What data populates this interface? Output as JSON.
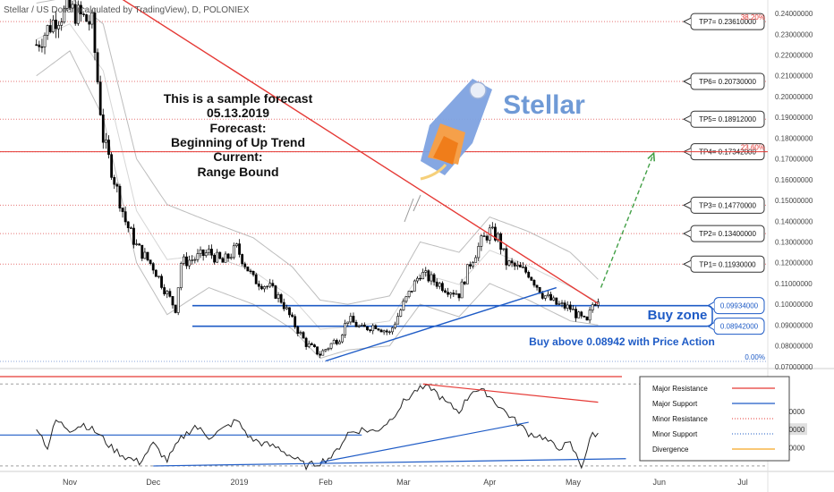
{
  "header": {
    "title": "Stellar / US Dollar (calculated by TradingView), D, POLONIEX"
  },
  "annotation": {
    "lines": [
      "This is a sample forecast",
      "05.13.2019",
      "Forecast:",
      "Beginning of Up Trend",
      "Current:",
      "Range Bound"
    ]
  },
  "logo": {
    "text": "Stellar",
    "icon": "rocket-icon",
    "color": "#6f9ad6"
  },
  "buy_zone": {
    "label": "Buy zone",
    "note": "Buy above 0.08942 with Price Action",
    "upper": 0.09934,
    "lower": 0.08942,
    "upper_label": "0.09934000",
    "lower_label": "0.08942000"
  },
  "targets": [
    {
      "label": "TP1= 0.11930000",
      "value": 0.1193
    },
    {
      "label": "TP2= 0.13400000",
      "value": 0.134
    },
    {
      "label": "TP3= 0.14770000",
      "value": 0.1477
    },
    {
      "label": "TP4= 0.17342000",
      "value": 0.17342
    },
    {
      "label": "TP5= 0.18912000",
      "value": 0.18912
    },
    {
      "label": "TP6= 0.20730000",
      "value": 0.2073
    },
    {
      "label": "TP7= 0.23610000",
      "value": 0.2361
    }
  ],
  "fib_levels": [
    {
      "label": "38.20%",
      "value": 0.2361
    },
    {
      "label": "23.60%",
      "value": 0.17342
    },
    {
      "label": "0.00%",
      "value": 0.0725
    }
  ],
  "legend": {
    "items": [
      {
        "label": "Major Resistance",
        "color": "#e53935",
        "style": "solid"
      },
      {
        "label": "Major Support",
        "color": "#1e5bc6",
        "style": "solid"
      },
      {
        "label": "Minor Resistance",
        "color": "#e53935",
        "style": "dotted"
      },
      {
        "label": "Minor Support",
        "color": "#1e5bc6",
        "style": "dotted"
      },
      {
        "label": "Divergence",
        "color": "#f5a623",
        "style": "solid"
      }
    ]
  },
  "colors": {
    "support": "#1e5bc6",
    "resistance": "#e53935",
    "projection": "#43a047",
    "candle": "#000000",
    "band": "#bdbdbd"
  },
  "chart_data": {
    "type": "candlestick",
    "ylim": [
      0.0699,
      0.2465
    ],
    "price_ticks": [
      "0.24000000",
      "0.23000000",
      "0.22000000",
      "0.21000000",
      "0.20000000",
      "0.19000000",
      "0.18000000",
      "0.17000000",
      "0.16000000",
      "0.15000000",
      "0.14000000",
      "0.13000000",
      "0.12000000",
      "0.11000000",
      "0.10000000",
      "0.09000000",
      "0.08000000",
      "0.07000000"
    ],
    "price_tick_values": [
      0.24,
      0.23,
      0.22,
      0.21,
      0.2,
      0.19,
      0.18,
      0.17,
      0.16,
      0.15,
      0.14,
      0.13,
      0.12,
      0.11,
      0.1,
      0.09,
      0.08,
      0.07
    ],
    "x_labels": [
      "Nov",
      "Dec",
      "2019",
      "Feb",
      "Mar",
      "Apr",
      "May",
      "Jun",
      "Jul"
    ],
    "x_label_days": [
      0,
      30,
      61,
      92,
      120,
      151,
      181,
      212,
      242
    ],
    "close_series": {
      "days": [
        -12,
        -5,
        0,
        8,
        12,
        15,
        20,
        24,
        30,
        35,
        38,
        40,
        45,
        50,
        55,
        60,
        66,
        72,
        76,
        80,
        85,
        90,
        95,
        97,
        100,
        105,
        110,
        115,
        120,
        126,
        130,
        135,
        140,
        144,
        148,
        151,
        154,
        157,
        160,
        165,
        170,
        175,
        180,
        183,
        186,
        188,
        190
      ],
      "values": [
        0.225,
        0.238,
        0.242,
        0.235,
        0.18,
        0.165,
        0.14,
        0.128,
        0.118,
        0.105,
        0.098,
        0.12,
        0.122,
        0.125,
        0.12,
        0.127,
        0.112,
        0.108,
        0.102,
        0.092,
        0.081,
        0.076,
        0.082,
        0.084,
        0.093,
        0.088,
        0.09,
        0.086,
        0.1,
        0.115,
        0.112,
        0.108,
        0.105,
        0.12,
        0.13,
        0.135,
        0.132,
        0.12,
        0.118,
        0.115,
        0.105,
        0.1,
        0.098,
        0.094,
        0.091,
        0.1,
        0.103
      ]
    },
    "volatility_bands": {
      "upper": {
        "days": [
          -12,
          0,
          12,
          24,
          35,
          50,
          66,
          80,
          90,
          100,
          115,
          126,
          140,
          151,
          165,
          180,
          190
        ],
        "values": [
          0.245,
          0.248,
          0.235,
          0.17,
          0.148,
          0.14,
          0.132,
          0.118,
          0.102,
          0.1,
          0.104,
          0.13,
          0.125,
          0.142,
          0.135,
          0.125,
          0.112
        ]
      },
      "lower": {
        "days": [
          -12,
          0,
          12,
          24,
          35,
          50,
          66,
          80,
          90,
          100,
          115,
          126,
          140,
          151,
          165,
          180,
          190
        ],
        "values": [
          0.21,
          0.222,
          0.19,
          0.12,
          0.095,
          0.108,
          0.1,
          0.088,
          0.074,
          0.078,
          0.08,
          0.1,
          0.094,
          0.11,
          0.102,
          0.092,
          0.09
        ]
      }
    },
    "trendlines": {
      "resistance": {
        "from": [
          -28,
          0.287
        ],
        "to": [
          190,
          0.1003
        ]
      },
      "support": {
        "from": [
          92,
          0.0727
        ],
        "to": [
          175,
          0.108
        ]
      },
      "projection": {
        "from": [
          191,
          0.108
        ],
        "to": [
          210,
          0.1727
        ]
      }
    },
    "oscillator": {
      "ticks": [
        "60.00000",
        "50.00000",
        "40.00000"
      ],
      "tick_values": [
        60,
        50,
        40
      ],
      "ylim": [
        28,
        82
      ],
      "current_value": "50.00000",
      "days": [
        -12,
        -8,
        -5,
        0,
        5,
        10,
        15,
        20,
        25,
        30,
        35,
        40,
        45,
        50,
        55,
        60,
        65,
        70,
        75,
        80,
        85,
        90,
        95,
        100,
        105,
        110,
        115,
        120,
        125,
        130,
        135,
        140,
        145,
        150,
        155,
        160,
        165,
        170,
        175,
        180,
        184,
        188,
        190
      ],
      "values": [
        52,
        40,
        55,
        50,
        53,
        48,
        40,
        35,
        32,
        42,
        33,
        45,
        52,
        46,
        50,
        55,
        45,
        42,
        40,
        35,
        30,
        32,
        36,
        48,
        50,
        49,
        55,
        65,
        72,
        73,
        65,
        60,
        72,
        70,
        62,
        55,
        48,
        46,
        40,
        42,
        30,
        48,
        47
      ],
      "divergence_resistance": {
        "from": [
          127,
          75
        ],
        "to": [
          190,
          65
        ]
      },
      "divergence_support": {
        "from": [
          90,
          32
        ],
        "to": [
          165,
          54
        ]
      },
      "horizontal_support": [
        47
      ],
      "bottom_support": {
        "from": [
          30,
          30
        ],
        "to": [
          200,
          34
        ]
      }
    }
  }
}
